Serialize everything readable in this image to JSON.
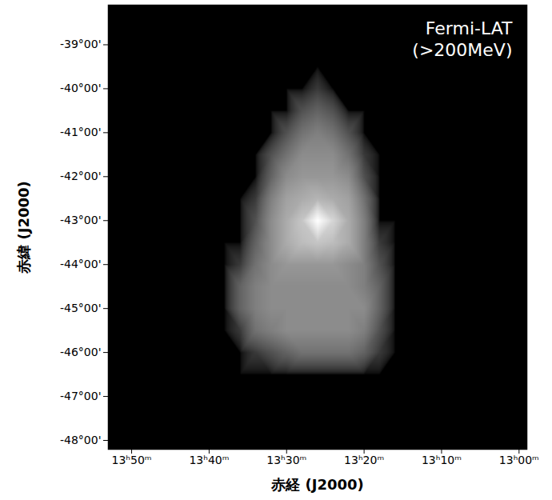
{
  "chart_data": {
    "type": "heatmap",
    "annotation": "Fermi-LAT\n(>200MeV)",
    "xlabel": "赤経 (J2000)",
    "ylabel": "赤緯 (J2000)",
    "xlim": [
      833,
      779
    ],
    "ylim": [
      -48.2,
      -38.1
    ],
    "xticks": [
      {
        "value": 830,
        "label": "13ʰ50ᵐ"
      },
      {
        "value": 820,
        "label": "13ʰ40ᵐ"
      },
      {
        "value": 810,
        "label": "13ʰ30ᵐ"
      },
      {
        "value": 800,
        "label": "13ʰ20ᵐ"
      },
      {
        "value": 790,
        "label": "13ʰ10ᵐ"
      },
      {
        "value": 780,
        "label": "13ʰ00ᵐ"
      }
    ],
    "yticks": [
      {
        "value": -39,
        "label": "-39°00'"
      },
      {
        "value": -40,
        "label": "-40°00'"
      },
      {
        "value": -41,
        "label": "-41°00'"
      },
      {
        "value": -42,
        "label": "-42°00'"
      },
      {
        "value": -43,
        "label": "-43°00'"
      },
      {
        "value": -44,
        "label": "-44°00'"
      },
      {
        "value": -45,
        "label": "-45°00'"
      },
      {
        "value": -46,
        "label": "-46°00'"
      },
      {
        "value": -47,
        "label": "-47°00'"
      },
      {
        "value": -48,
        "label": "-48°00'"
      }
    ],
    "cells": {
      "x": [
        820,
        818,
        816,
        814,
        812,
        810,
        808,
        806,
        804,
        802,
        800,
        798,
        796,
        794
      ],
      "y": [
        -39.5,
        -40,
        -40.5,
        -41,
        -41.5,
        -42,
        -42.5,
        -43,
        -43.5,
        -44,
        -44.5,
        -45,
        -45.5,
        -46,
        -46.5,
        -47
      ],
      "values": [
        [
          0,
          0,
          0,
          0,
          0,
          0,
          0,
          0,
          0,
          0,
          0,
          0,
          0,
          0
        ],
        [
          0,
          0,
          0,
          0,
          0,
          0,
          0,
          0.5,
          0,
          0,
          0,
          0,
          0,
          0
        ],
        [
          0,
          0,
          0,
          0,
          0,
          0,
          1,
          1.5,
          1,
          0,
          0,
          0,
          0,
          0
        ],
        [
          0,
          0,
          0,
          0,
          0,
          1,
          2,
          2.5,
          2,
          1,
          0,
          0,
          0,
          0
        ],
        [
          0,
          0,
          0,
          0,
          1,
          2,
          3,
          3,
          3,
          2,
          0.5,
          0,
          0,
          0
        ],
        [
          0,
          0,
          0,
          0,
          1.5,
          3,
          3.5,
          3.5,
          3.5,
          3,
          1,
          0,
          0,
          0
        ],
        [
          0,
          0,
          0,
          0.5,
          2.5,
          4,
          4.5,
          5,
          4.5,
          4,
          2,
          0,
          0,
          0
        ],
        [
          0,
          0,
          0,
          1,
          3,
          4.5,
          6,
          10,
          7,
          4.5,
          2.5,
          0,
          0,
          0
        ],
        [
          0,
          0,
          0,
          1.5,
          3,
          4.5,
          5.5,
          6,
          5.5,
          4.5,
          2.5,
          0.5,
          0,
          0
        ],
        [
          0,
          0,
          0.5,
          2,
          3,
          3.5,
          3.5,
          3.5,
          3.5,
          3,
          2.5,
          1,
          0,
          0
        ],
        [
          0,
          0,
          1.5,
          2.5,
          3,
          3,
          3,
          3,
          3,
          3,
          2.5,
          1.5,
          0,
          0
        ],
        [
          0,
          0,
          1.5,
          2.5,
          3,
          3,
          3,
          3,
          3,
          3,
          3,
          1.5,
          0,
          0
        ],
        [
          0,
          0,
          0.5,
          2,
          2.5,
          3,
          3,
          3,
          3,
          3,
          2.5,
          1,
          0,
          0
        ],
        [
          0,
          0,
          0,
          0.5,
          1,
          1.5,
          2,
          2,
          2,
          2,
          1.5,
          0.5,
          0,
          0
        ],
        [
          0,
          0,
          0,
          0,
          0,
          0,
          0,
          0,
          0,
          0,
          0,
          0,
          0,
          0
        ],
        [
          0,
          0,
          0,
          0,
          0,
          0,
          0,
          0,
          0,
          0,
          0,
          0,
          0,
          0
        ]
      ]
    }
  }
}
